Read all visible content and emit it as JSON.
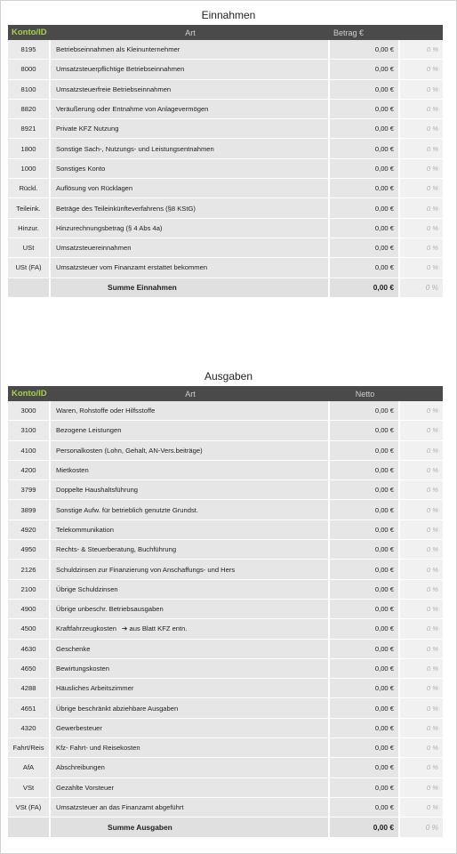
{
  "income": {
    "title": "Einnahmen",
    "headers": {
      "id": "Konto/ID",
      "art": "Art",
      "amount": "Betrag €"
    },
    "rows": [
      {
        "id": "8195",
        "art": "Betriebseinnahmen als Kleinunternehmer",
        "amount": "0,00 €",
        "pct": "0 %"
      },
      {
        "id": "8000",
        "art": "Umsatzsteuerpflichtige Betriebseinnahmen",
        "amount": "0,00 €",
        "pct": "0 %"
      },
      {
        "id": "8100",
        "art": "Umsatzsteuerfreie Betriebseinnahmen",
        "amount": "0,00 €",
        "pct": "0 %"
      },
      {
        "id": "8820",
        "art": "Veräußerung oder Entnahme von Anlagevermögen",
        "amount": "0,00 €",
        "pct": "0 %"
      },
      {
        "id": "8921",
        "art": "Private KFZ Nutzung",
        "amount": "0,00 €",
        "pct": "0 %"
      },
      {
        "id": "1800",
        "art": "Sonstige Sach-, Nutzungs- und Leistungsentnahmen",
        "amount": "0,00 €",
        "pct": "0 %"
      },
      {
        "id": "1000",
        "art": "Sonstiges Konto",
        "amount": "0,00 €",
        "pct": "0 %"
      },
      {
        "id": "Rückl.",
        "art": "Auflösung von Rücklagen",
        "amount": "0,00 €",
        "pct": "0 %"
      },
      {
        "id": "Teileink.",
        "art": "Beträge des Teileinkünfteverfahrens (§8 KStG)",
        "amount": "0,00 €",
        "pct": "0 %"
      },
      {
        "id": "Hinzur.",
        "art": "Hinzurechnungsbetrag (§ 4 Abs 4a)",
        "amount": "0,00 €",
        "pct": "0 %"
      },
      {
        "id": "USt",
        "art": "Umsatzsteuereinnahmen",
        "amount": "0,00 €",
        "pct": "0 %"
      },
      {
        "id": "USt (FA)",
        "art": "Umsatzsteuer vom Finanzamt erstattet bekommen",
        "amount": "0,00 €",
        "pct": "0 %"
      }
    ],
    "sum": {
      "label": "Summe Einnahmen",
      "amount": "0,00 €",
      "pct": "0 %"
    }
  },
  "expenses": {
    "title": "Ausgaben",
    "headers": {
      "id": "Konto/ID",
      "art": "Art",
      "amount": "Netto"
    },
    "rows": [
      {
        "id": "3000",
        "art": "Waren, Rohstoffe oder Hilfsstoffe",
        "amount": "0,00 €",
        "pct": "0 %"
      },
      {
        "id": "3100",
        "art": "Bezogene Leistungen",
        "amount": "0,00 €",
        "pct": "0 %"
      },
      {
        "id": "4100",
        "art": "Personalkosten (Lohn, Gehalt, AN-Vers.beiträge)",
        "amount": "0,00 €",
        "pct": "0 %"
      },
      {
        "id": "4200",
        "art": "Mietkosten",
        "amount": "0,00 €",
        "pct": "0 %"
      },
      {
        "id": "3799",
        "art": "Doppelte Haushaltsführung",
        "amount": "0,00 €",
        "pct": "0 %"
      },
      {
        "id": "3899",
        "art": "Sonstige Aufw. für betrieblich genutzte Grundst.",
        "amount": "0,00 €",
        "pct": "0 %"
      },
      {
        "id": "4920",
        "art": "Telekommunikation",
        "amount": "0,00 €",
        "pct": "0 %"
      },
      {
        "id": "4950",
        "art": "Rechts- & Steuerberatung, Buchführung",
        "amount": "0,00 €",
        "pct": "0 %"
      },
      {
        "id": "2126",
        "art": "Schuldzinsen zur Finanzierung von Anschaffungs- und Hers",
        "amount": "0,00 €",
        "pct": "0 %"
      },
      {
        "id": "2100",
        "art": "Übrige Schuldzinsen",
        "amount": "0,00 €",
        "pct": "0 %"
      },
      {
        "id": "4900",
        "art": "Übrige unbeschr. Betriebsausgaben",
        "amount": "0,00 €",
        "pct": "0 %"
      },
      {
        "id": "4500",
        "art": "Kraftfahrzeugkosten",
        "note": "aus Blatt KFZ entn.",
        "amount": "0,00 €",
        "pct": "0 %"
      },
      {
        "id": "4630",
        "art": "Geschenke",
        "amount": "0,00 €",
        "pct": "0 %"
      },
      {
        "id": "4650",
        "art": "Bewirtungskosten",
        "amount": "0,00 €",
        "pct": "0 %"
      },
      {
        "id": "4288",
        "art": "Häusliches Arbeitszimmer",
        "amount": "0,00 €",
        "pct": "0 %"
      },
      {
        "id": "4651",
        "art": "Übrige beschränkt abziehbare Ausgaben",
        "amount": "0,00 €",
        "pct": "0 %"
      },
      {
        "id": "4320",
        "art": "Gewerbesteuer",
        "amount": "0,00 €",
        "pct": "0 %"
      },
      {
        "id": "Fahrt/Reis",
        "art": "Kfz- Fahrt- und Reisekosten",
        "amount": "0,00 €",
        "pct": "0 %"
      },
      {
        "id": "AfA",
        "art": "Abschreibungen",
        "amount": "0,00 €",
        "pct": "0 %"
      },
      {
        "id": "VSt",
        "art": "Gezahlte Vorsteuer",
        "amount": "0,00 €",
        "pct": "0 %"
      },
      {
        "id": "VSt (FA)",
        "art": "Umsatzsteuer an das Finanzamt abgeführt",
        "amount": "0,00 €",
        "pct": "0 %"
      }
    ],
    "sum": {
      "label": "Summe Ausgaben",
      "amount": "0,00 €",
      "pct": "0 %"
    }
  }
}
